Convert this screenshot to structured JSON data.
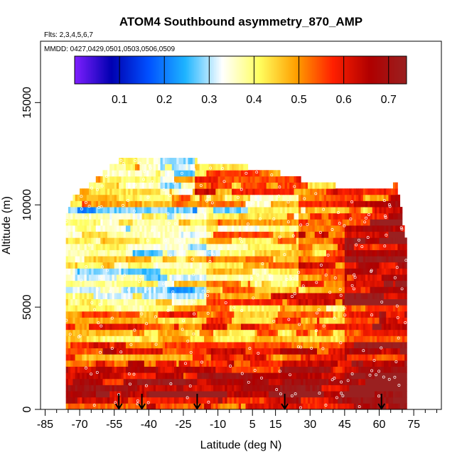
{
  "chart_data": {
    "type": "heatmap",
    "title": "ATOM4 Southbound asymmetry_870_AMP",
    "flights_label": "Flts: 2,3,4,5,6,7",
    "dates_label": "MMDD: 0427,0429,0501,0503,0506,0509",
    "xlabel": "Latitude (deg N)",
    "ylabel": "Altitude (m)",
    "xlim": [
      -87,
      87
    ],
    "ylim": [
      0,
      18000
    ],
    "x_ticks": [
      -85,
      -70,
      -55,
      -40,
      -25,
      -10,
      5,
      15,
      30,
      45,
      60,
      75
    ],
    "x_minor_ticks": [
      -80,
      -75,
      -65,
      -60,
      -50,
      -45,
      -35,
      -30,
      -20,
      -15,
      -5,
      0,
      10,
      20,
      25,
      35,
      40,
      50,
      55,
      65,
      70,
      80,
      85
    ],
    "y_ticks": [
      0,
      5000,
      10000,
      15000
    ],
    "colorbar": {
      "range": [
        0,
        0.74
      ],
      "ticks": [
        0.1,
        0.2,
        0.3,
        0.4,
        0.5,
        0.6,
        0.7
      ],
      "colors": [
        "#7f1fff",
        "#0000b0",
        "#0050ff",
        "#1eb4ff",
        "#ffffff",
        "#ffff60",
        "#ffa000",
        "#ff2000",
        "#b00000",
        "#9a2020"
      ]
    },
    "data_extent": {
      "lat_min": -76,
      "lat_max": 72,
      "top_altitude_by_latitude": [
        [
          -76,
          9500
        ],
        [
          -72,
          10500
        ],
        [
          -65,
          11000
        ],
        [
          -60,
          11600
        ],
        [
          -55,
          12000
        ],
        [
          -50,
          12300
        ],
        [
          -35,
          12400
        ],
        [
          -20,
          12400
        ],
        [
          -18,
          11900
        ],
        [
          0,
          11900
        ],
        [
          15,
          11600
        ],
        [
          30,
          11100
        ],
        [
          45,
          10900
        ],
        [
          60,
          10800
        ],
        [
          68,
          11000
        ],
        [
          70,
          9500
        ],
        [
          72,
          8000
        ]
      ]
    },
    "description_regions": [
      {
        "lat_range": [
          -76,
          -20
        ],
        "alt_range": [
          5000,
          10000
        ],
        "value_range": [
          0.25,
          0.45
        ],
        "note": "mid-troposphere southern band: blues/whites"
      },
      {
        "lat_range": [
          -20,
          20
        ],
        "alt_range": [
          6000,
          11000
        ],
        "value_range": [
          0.2,
          0.55
        ],
        "note": "mixed blue/orange"
      },
      {
        "lat_range": [
          45,
          72
        ],
        "alt_range": [
          0,
          9000
        ],
        "value_range": [
          0.6,
          0.72
        ],
        "note": "northern lower troposphere: dark red"
      },
      {
        "lat_range": [
          -76,
          72
        ],
        "alt_range": [
          0,
          1500
        ],
        "value_range": [
          0.55,
          0.7
        ],
        "note": "boundary layer: red"
      }
    ],
    "arrow_markers_latitude": [
      -53,
      -43,
      -19,
      19,
      61
    ]
  }
}
